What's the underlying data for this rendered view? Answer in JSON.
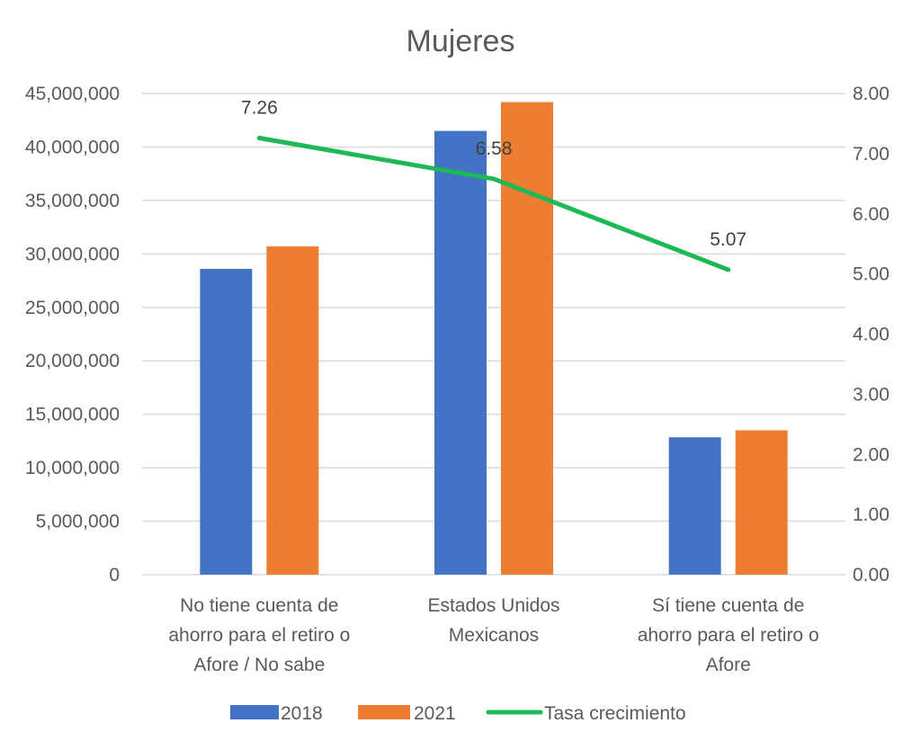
{
  "chart_data": {
    "type": "bar",
    "title": "Mujeres",
    "categories": [
      [
        "No tiene cuenta de",
        "ahorro para el retiro o",
        "Afore / No sabe"
      ],
      [
        "Estados Unidos",
        "Mexicanos"
      ],
      [
        "Sí tiene cuenta de",
        "ahorro para el retiro o",
        "Afore"
      ]
    ],
    "series": [
      {
        "name": "2018",
        "type": "bar",
        "axis": "left",
        "color": "#4472c4",
        "values": [
          28600000,
          41500000,
          12850000
        ]
      },
      {
        "name": "2021",
        "type": "bar",
        "axis": "left",
        "color": "#ed7d31",
        "values": [
          30700000,
          44200000,
          13500000
        ]
      },
      {
        "name": "Tasa crecimiento",
        "type": "line",
        "axis": "right",
        "color": "#1db954",
        "values": [
          7.26,
          6.58,
          5.07
        ],
        "labels": [
          "7.26",
          "6.58",
          "5.07"
        ]
      }
    ],
    "y_left": {
      "min": 0,
      "max": 45000000,
      "ticks": [
        0,
        5000000,
        10000000,
        15000000,
        20000000,
        25000000,
        30000000,
        35000000,
        40000000,
        45000000
      ],
      "tick_labels": [
        "0",
        "5,000,000",
        "10,000,000",
        "15,000,000",
        "20,000,000",
        "25,000,000",
        "30,000,000",
        "35,000,000",
        "40,000,000",
        "45,000,000"
      ]
    },
    "y_right": {
      "min": 0,
      "max": 8,
      "ticks": [
        0,
        1,
        2,
        3,
        4,
        5,
        6,
        7,
        8
      ],
      "tick_labels": [
        "0.00",
        "1.00",
        "2.00",
        "3.00",
        "4.00",
        "5.00",
        "6.00",
        "7.00",
        "8.00"
      ]
    },
    "grid": true,
    "legend": {
      "position": "bottom",
      "entries": [
        "2018",
        "2021",
        "Tasa crecimiento"
      ]
    }
  }
}
